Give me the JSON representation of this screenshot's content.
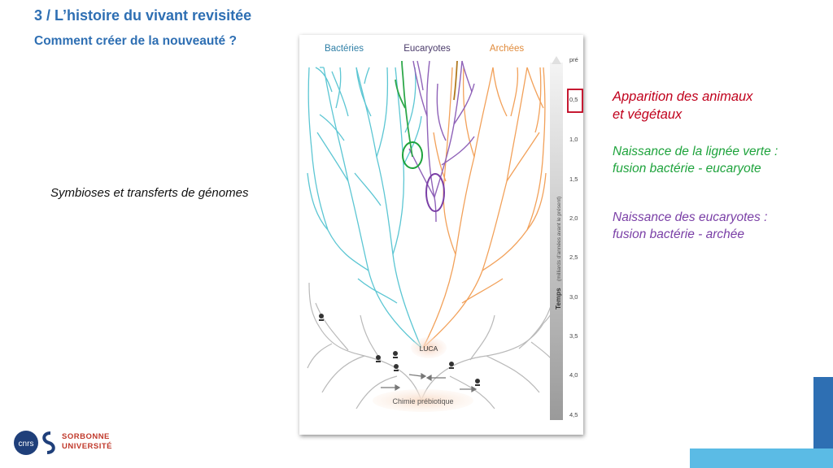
{
  "header": {
    "title": "3 / L’histoire du vivant revisitée",
    "subtitle": "Comment créer de la nouveauté ?"
  },
  "left_caption": "Symbioses et transferts de génomes",
  "diagram": {
    "domains": {
      "bacteria": "Bactéries",
      "eukaryotes": "Eucaryotes",
      "archaea": "Archées"
    },
    "luca_label": "LUCA",
    "base_label": "Chimie prébiotique",
    "timeline": {
      "title": "Temps",
      "subtitle": "(milliards d'années avant le présent)",
      "ticks": [
        "pré",
        "0,5",
        "1,0",
        "1,5",
        "2,0",
        "2,5",
        "3,0",
        "3,5",
        "4,0",
        "4,5"
      ]
    },
    "colors": {
      "bacteria": "#5cc6d3",
      "eukaryotes": "#8f62b8",
      "archaea": "#f2a15a",
      "green_lineage": "#2ea84a",
      "brown_lineage": "#b0781e",
      "early_life": "#b9b9b9",
      "highlight_red": "#c0001c",
      "highlight_green": "#1ea33c",
      "highlight_purple": "#7a3fa6"
    }
  },
  "annotations": {
    "animals_line1": "Apparition des animaux",
    "animals_line2": "et végétaux",
    "green_line1": "Naissance de la lignée verte :",
    "green_line2": "fusion bactérie - eucaryote",
    "purple_line1": "Naissance des eucaryotes :",
    "purple_line2": "fusion bactérie - archée"
  },
  "logo": {
    "cnrs": "cnrs",
    "sorbonne_line1": "SORBONNE",
    "sorbonne_line2": "UNIVERSITÉ"
  }
}
